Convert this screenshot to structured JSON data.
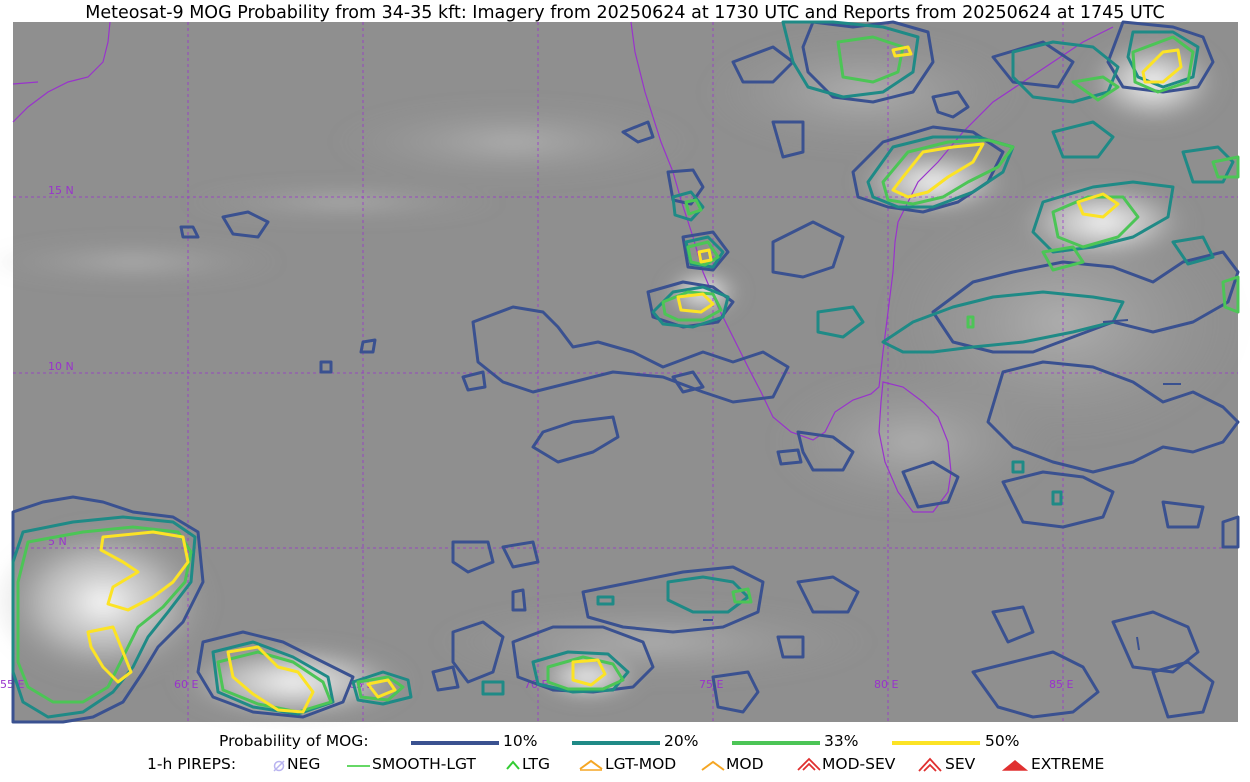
{
  "title": "Meteosat-9 MOG Probability from 34-35 kft: Imagery from 20250624 at 1730 UTC and Reports from 20250624 at 1745 UTC",
  "map": {
    "lat_labels": [
      "15 N",
      "10 N",
      "5 N"
    ],
    "lon_labels": [
      "55 E",
      "60 E",
      "65 E",
      "70 E",
      "75 E",
      "80 E",
      "85 E"
    ],
    "colors": {
      "grid": "#9933cc",
      "coast": "#9933cc",
      "p10": "#3a5190",
      "p20": "#1f8a86",
      "p33": "#4cc556",
      "p50": "#fce325"
    }
  },
  "legend": {
    "probability": {
      "label": "Probability of MOG:",
      "levels": [
        {
          "label": "10%",
          "color": "#3a5190"
        },
        {
          "label": "20%",
          "color": "#1f8a86"
        },
        {
          "label": "33%",
          "color": "#4cc556"
        },
        {
          "label": "50%",
          "color": "#fce325"
        }
      ]
    },
    "pireps": {
      "label": "1-h PIREPS:",
      "items": [
        {
          "label": "NEG",
          "icon": "neg-icon",
          "color": "#b9b4f0"
        },
        {
          "label": "SMOOTH-LGT",
          "icon": "smooth-lgt-icon",
          "color": "#33cc33"
        },
        {
          "label": "LTG",
          "icon": "ltg-icon",
          "color": "#33cc33"
        },
        {
          "label": "LGT-MOD",
          "icon": "lgt-mod-icon",
          "color": "#f5a623"
        },
        {
          "label": "MOD",
          "icon": "mod-icon",
          "color": "#f5a623"
        },
        {
          "label": "MOD-SEV",
          "icon": "mod-sev-icon",
          "color": "#e03030"
        },
        {
          "label": "SEV",
          "icon": "sev-icon",
          "color": "#e03030"
        },
        {
          "label": "EXTREME",
          "icon": "extreme-icon",
          "color": "#e03030"
        }
      ]
    }
  }
}
